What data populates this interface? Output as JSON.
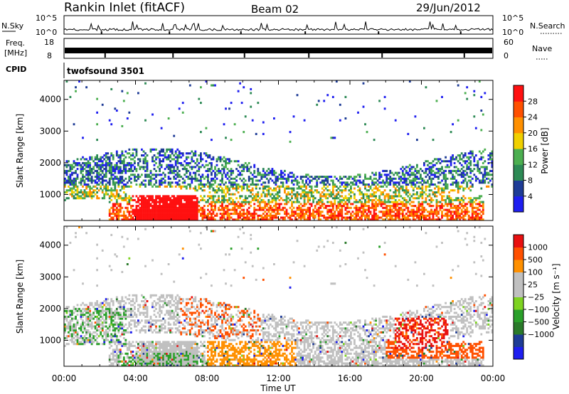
{
  "header": {
    "station": "Rankin Inlet (fitACF)",
    "beam": "Beam 02",
    "date": "29/Jun/2012"
  },
  "strips": {
    "nsky_label": "N.Sky",
    "nsky_ticks": [
      "10^5",
      "10^0"
    ],
    "nsearch_label": "N.Search",
    "nsearch_ticks": [
      "10^5",
      "10^0"
    ],
    "freq_label_1": "Freq.",
    "freq_label_2": "[MHz]",
    "freq_ticks": [
      "18",
      "8"
    ],
    "nave_label": "Nave",
    "nave_ticks": [
      "60",
      "0"
    ],
    "cpid_label": "CPID",
    "cpid_value": "twofsound  3501"
  },
  "colors": {
    "power": [
      "#1e1ef0",
      "#1e3c96",
      "#2d8a55",
      "#4caf50",
      "#f0d000",
      "#ff9000",
      "#ff5000",
      "#ff1010"
    ],
    "velocity": [
      "#e81010",
      "#ff5000",
      "#ff9000",
      "#c0c0c0",
      "#c0c0c0",
      "#7ed321",
      "#2aa02a",
      "#2a7a2a",
      "#1e3c96",
      "#1e1ef0"
    ]
  },
  "chart_data": [
    {
      "type": "heatmap",
      "panel": "power",
      "ylabel": "Slant Range [km]",
      "yticks": [
        "1000",
        "2000",
        "3000",
        "4000"
      ],
      "ylim": [
        180,
        4600
      ],
      "xlim_hours": [
        0,
        24
      ],
      "colorbar_label": "Power [dB]",
      "colorbar_ticks": [
        "4",
        "8",
        "12",
        "16",
        "20",
        "24",
        "28"
      ],
      "colorbar_range": [
        0,
        32
      ]
    },
    {
      "type": "heatmap",
      "panel": "velocity",
      "ylabel": "Slant Range [km]",
      "yticks": [
        "1000",
        "2000",
        "3000",
        "4000"
      ],
      "ylim": [
        180,
        4600
      ],
      "xlim_hours": [
        0,
        24
      ],
      "colorbar_label": "Velocity [m s⁻¹]",
      "colorbar_ticks": [
        "1000",
        "500",
        "100",
        "25",
        "−25",
        "−100",
        "−500",
        "−1000"
      ]
    }
  ],
  "xaxis": {
    "ticks": [
      "00:00",
      "04:00",
      "08:00",
      "12:00",
      "16:00",
      "20:00",
      "00:00"
    ],
    "label": "Time UT"
  }
}
